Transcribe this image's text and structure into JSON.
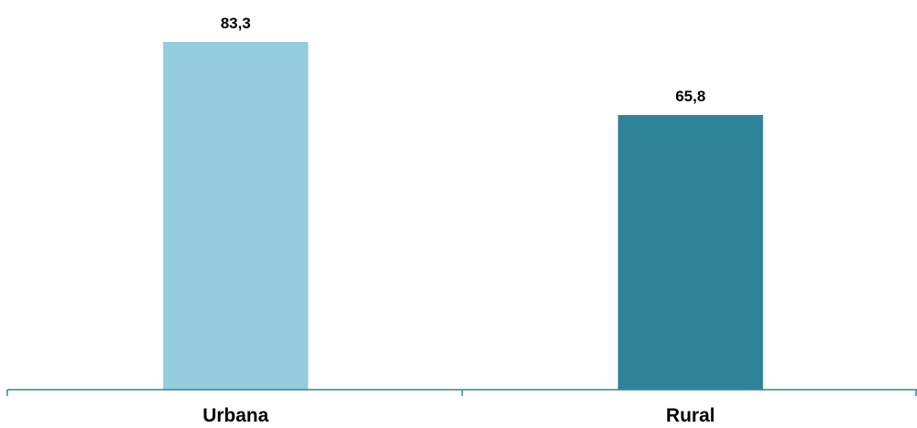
{
  "chart_data": {
    "type": "bar",
    "categories": [
      "Urbana",
      "Rural"
    ],
    "values": [
      83.3,
      65.8
    ],
    "value_labels": [
      "83,3",
      "65,8"
    ],
    "colors": [
      "#94CDDD",
      "#30849A"
    ],
    "axis_color": "#30849A",
    "title": "",
    "xlabel": "",
    "ylabel": "",
    "ylim": [
      0,
      100
    ],
    "grid": false,
    "legend": "none"
  }
}
